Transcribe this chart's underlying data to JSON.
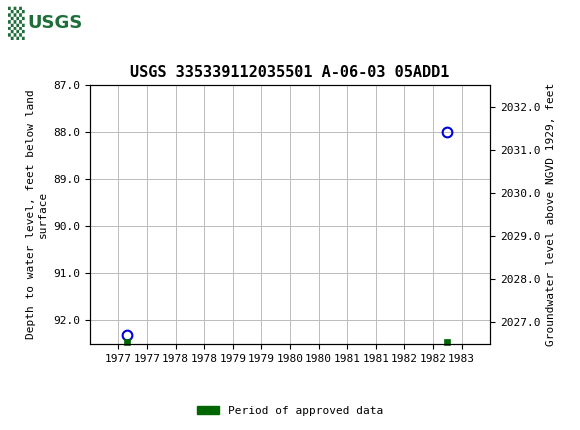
{
  "title": "USGS 335339112035501 A-06-03 05ADD1",
  "ylabel_left": "Depth to water level, feet below land\nsurface",
  "ylabel_right": "Groundwater level above NGVD 1929, feet",
  "xlim": [
    1976.5,
    1983.5
  ],
  "ylim_left_top": 87.0,
  "ylim_left_bottom": 92.5,
  "ylim_right_top": 2032.5,
  "ylim_right_bottom": 2026.5,
  "yticks_left": [
    87.0,
    88.0,
    89.0,
    90.0,
    91.0,
    92.0
  ],
  "yticks_right": [
    2032.0,
    2031.0,
    2030.0,
    2029.0,
    2028.0,
    2027.0
  ],
  "xtick_positions": [
    1977.0,
    1977.5,
    1978.0,
    1978.5,
    1979.0,
    1979.5,
    1980.0,
    1980.5,
    1981.0,
    1981.5,
    1982.0,
    1982.5,
    1983.0
  ],
  "xtick_labels": [
    "1977",
    "1977",
    "1978",
    "1978",
    "1979",
    "1979",
    "1980",
    "1980",
    "1981",
    "1981",
    "1982",
    "1982",
    "1983"
  ],
  "data_points": [
    {
      "x": 1977.15,
      "y_left": 92.3,
      "color": "#0000dd"
    },
    {
      "x": 1982.75,
      "y_left": 88.0,
      "color": "#0000dd"
    }
  ],
  "approved_markers": [
    {
      "x": 1977.15
    },
    {
      "x": 1982.75
    }
  ],
  "approved_color": "#006600",
  "background_color": "#ffffff",
  "header_bg_color": "#1f6e3a",
  "grid_color": "#bbbbbb",
  "title_fontsize": 11,
  "axis_label_fontsize": 8,
  "tick_fontsize": 8,
  "legend_label": "Period of approved data"
}
